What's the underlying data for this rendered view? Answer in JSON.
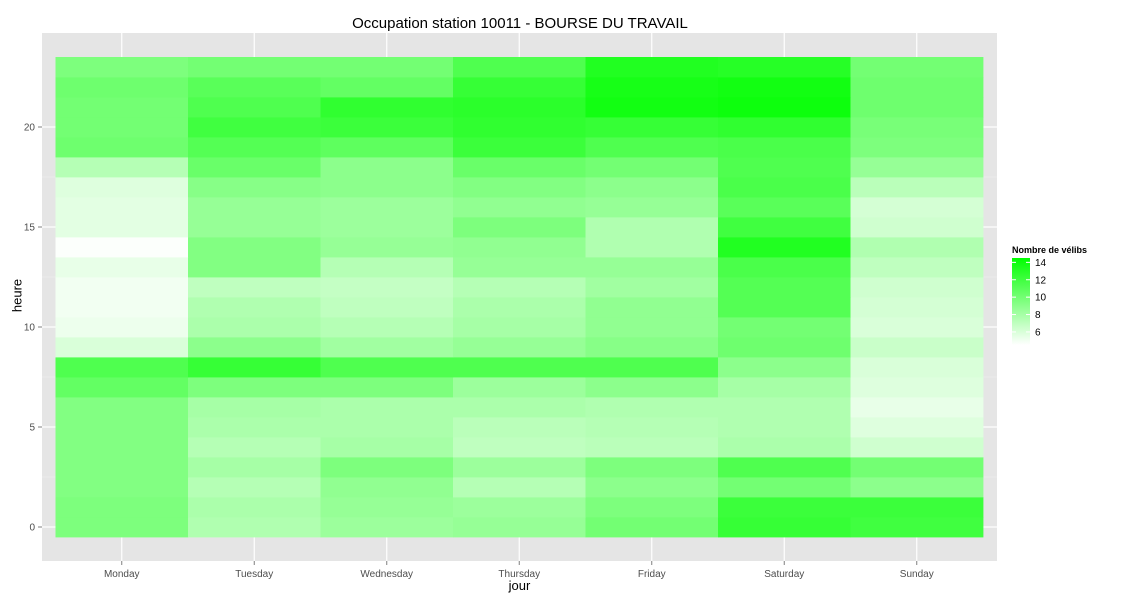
{
  "chart_data": {
    "type": "heatmap",
    "title": "Occupation station 10011 - BOURSE DU TRAVAIL",
    "xlabel": "jour",
    "ylabel": "heure",
    "x_categories": [
      "Monday",
      "Tuesday",
      "Wednesday",
      "Thursday",
      "Friday",
      "Saturday",
      "Sunday"
    ],
    "y_hours": [
      0,
      1,
      2,
      3,
      4,
      5,
      6,
      7,
      8,
      9,
      10,
      11,
      12,
      13,
      14,
      15,
      16,
      17,
      18,
      19,
      20,
      21,
      22,
      23
    ],
    "y_ticks": [
      0,
      5,
      10,
      15,
      20
    ],
    "ylim": [
      -0.5,
      23.5
    ],
    "grid": true,
    "legend": {
      "title": "Nombre de vélibs",
      "position": "right",
      "ticks": [
        6,
        8,
        10,
        12,
        14
      ],
      "min": 4.5,
      "max": 14.5,
      "low_color": "#ffffff",
      "high_color": "#00ff00"
    },
    "colors": {
      "panel_bg": "#e5e5e5",
      "grid": "#ffffff"
    },
    "values": [
      [
        9.6,
        7.6,
        8.4,
        8.6,
        10.0,
        12.4,
        12.0
      ],
      [
        9.6,
        7.8,
        8.6,
        8.4,
        9.6,
        12.2,
        12.2
      ],
      [
        9.4,
        7.4,
        8.8,
        7.4,
        9.0,
        10.0,
        9.0
      ],
      [
        9.4,
        8.0,
        9.6,
        8.4,
        9.6,
        11.4,
        10.0
      ],
      [
        9.4,
        7.4,
        8.0,
        7.0,
        7.2,
        7.8,
        6.4
      ],
      [
        9.4,
        7.8,
        7.8,
        7.2,
        7.4,
        7.6,
        5.8
      ],
      [
        9.4,
        8.0,
        7.8,
        7.8,
        7.6,
        7.6,
        5.4
      ],
      [
        10.6,
        9.6,
        9.6,
        8.4,
        9.0,
        8.0,
        5.8
      ],
      [
        11.4,
        12.4,
        11.4,
        11.4,
        11.4,
        9.0,
        6.0
      ],
      [
        6.0,
        9.0,
        8.2,
        8.6,
        9.2,
        10.2,
        6.6
      ],
      [
        5.2,
        7.8,
        7.4,
        8.0,
        8.8,
        10.0,
        6.0
      ],
      [
        5.0,
        7.6,
        7.0,
        7.8,
        8.8,
        11.2,
        6.2
      ],
      [
        5.0,
        7.0,
        6.8,
        7.4,
        8.2,
        11.2,
        6.4
      ],
      [
        5.4,
        9.4,
        7.4,
        8.6,
        8.6,
        11.6,
        7.0
      ],
      [
        4.6,
        9.4,
        8.6,
        8.8,
        7.6,
        13.2,
        7.6
      ],
      [
        5.6,
        8.6,
        8.4,
        9.6,
        7.6,
        12.0,
        6.4
      ],
      [
        5.6,
        8.6,
        8.4,
        8.8,
        8.6,
        11.0,
        6.2
      ],
      [
        5.8,
        9.2,
        9.0,
        9.4,
        9.0,
        11.6,
        7.2
      ],
      [
        7.4,
        10.4,
        9.0,
        10.4,
        10.0,
        11.4,
        8.6
      ],
      [
        10.2,
        11.2,
        10.8,
        12.2,
        11.4,
        11.6,
        9.6
      ],
      [
        10.0,
        12.0,
        12.2,
        12.6,
        12.4,
        12.6,
        9.8
      ],
      [
        10.0,
        11.4,
        12.6,
        12.8,
        13.8,
        14.0,
        10.2
      ],
      [
        10.2,
        11.0,
        10.6,
        12.4,
        13.6,
        13.8,
        10.2
      ],
      [
        9.6,
        10.0,
        10.0,
        11.4,
        13.2,
        13.0,
        10.0
      ]
    ]
  }
}
